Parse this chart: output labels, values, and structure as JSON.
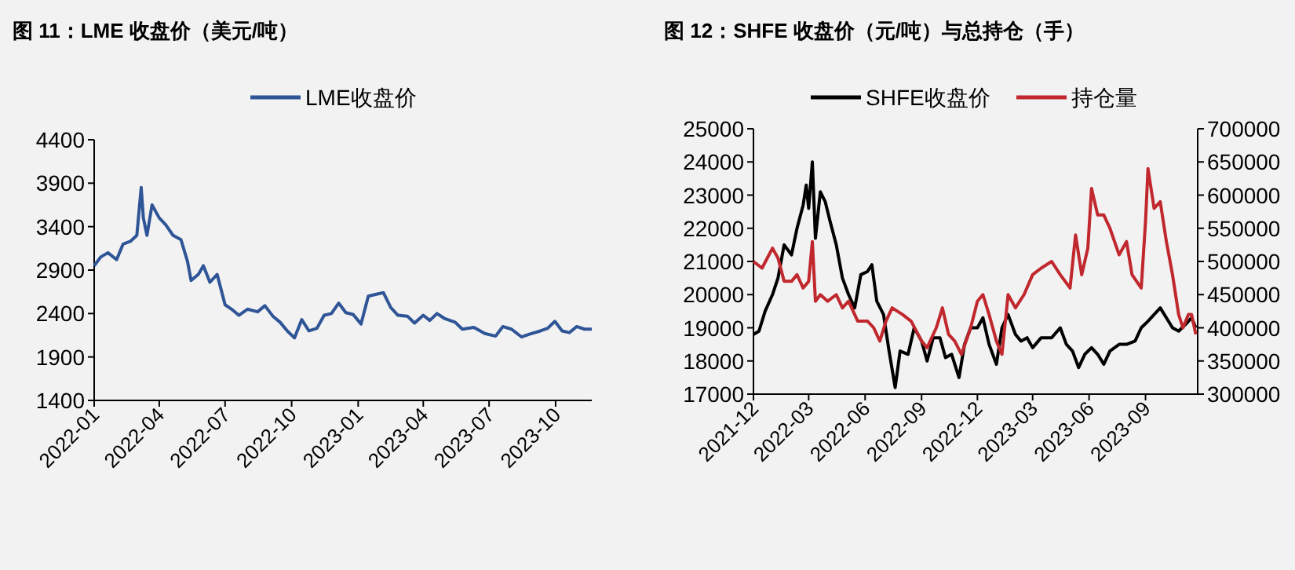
{
  "chart_data": [
    {
      "type": "line",
      "title": "图 11：LME 收盘价（美元/吨）",
      "legend": "top",
      "grid": false,
      "marker": "none",
      "line_style": "solid",
      "xlim": [
        "2022-01-01",
        "2023-11-20"
      ],
      "xticks": [
        "2022-01",
        "2022-04",
        "2022-07",
        "2022-10",
        "2023-01",
        "2023-04",
        "2023-07",
        "2023-10"
      ],
      "ylim": [
        1400,
        4400
      ],
      "yticks": [
        1400,
        1900,
        2400,
        2900,
        3400,
        3900,
        4400
      ],
      "series": [
        {
          "name": "LME收盘价",
          "color": "#2f5597",
          "x": [
            "2022-01-01",
            "2022-01-10",
            "2022-01-20",
            "2022-02-01",
            "2022-02-10",
            "2022-02-20",
            "2022-03-01",
            "2022-03-07",
            "2022-03-10",
            "2022-03-15",
            "2022-03-22",
            "2022-04-01",
            "2022-04-10",
            "2022-04-20",
            "2022-05-01",
            "2022-05-10",
            "2022-05-15",
            "2022-05-25",
            "2022-06-01",
            "2022-06-10",
            "2022-06-20",
            "2022-07-01",
            "2022-07-10",
            "2022-07-20",
            "2022-08-01",
            "2022-08-15",
            "2022-08-25",
            "2022-09-05",
            "2022-09-15",
            "2022-09-25",
            "2022-10-05",
            "2022-10-15",
            "2022-10-25",
            "2022-11-05",
            "2022-11-15",
            "2022-11-25",
            "2022-12-05",
            "2022-12-15",
            "2022-12-25",
            "2023-01-05",
            "2023-01-15",
            "2023-01-25",
            "2023-02-05",
            "2023-02-15",
            "2023-02-25",
            "2023-03-10",
            "2023-03-20",
            "2023-04-01",
            "2023-04-10",
            "2023-04-20",
            "2023-05-01",
            "2023-05-15",
            "2023-05-25",
            "2023-06-10",
            "2023-06-25",
            "2023-07-10",
            "2023-07-20",
            "2023-08-01",
            "2023-08-15",
            "2023-08-25",
            "2023-09-10",
            "2023-09-20",
            "2023-09-30",
            "2023-10-10",
            "2023-10-20",
            "2023-10-30",
            "2023-11-10",
            "2023-11-20"
          ],
          "values": [
            2950,
            3050,
            3100,
            3020,
            3200,
            3230,
            3300,
            3850,
            3500,
            3300,
            3650,
            3500,
            3420,
            3300,
            3250,
            3000,
            2780,
            2850,
            2950,
            2760,
            2850,
            2500,
            2450,
            2380,
            2450,
            2420,
            2490,
            2370,
            2300,
            2200,
            2120,
            2330,
            2200,
            2230,
            2380,
            2400,
            2520,
            2410,
            2390,
            2280,
            2600,
            2620,
            2640,
            2470,
            2380,
            2370,
            2290,
            2380,
            2320,
            2400,
            2340,
            2300,
            2220,
            2240,
            2170,
            2140,
            2250,
            2220,
            2130,
            2160,
            2200,
            2230,
            2310,
            2200,
            2180,
            2250,
            2220,
            2220
          ]
        }
      ]
    },
    {
      "type": "line",
      "title": "图 12：SHFE 收盘价（元/吨）与总持仓（手）",
      "legend": "top",
      "grid": false,
      "marker": "none",
      "line_style": "solid",
      "xlim": [
        "2021-12-01",
        "2023-11-25"
      ],
      "xticks": [
        "2021-12",
        "2022-03",
        "2022-06",
        "2022-09",
        "2022-12",
        "2023-03",
        "2023-06",
        "2023-09"
      ],
      "ylim": [
        17000,
        25000
      ],
      "yticks": [
        17000,
        18000,
        19000,
        20000,
        21000,
        22000,
        23000,
        24000,
        25000
      ],
      "y2lim": [
        300000,
        700000
      ],
      "y2ticks": [
        300000,
        350000,
        400000,
        450000,
        500000,
        550000,
        600000,
        650000,
        700000
      ],
      "series": [
        {
          "name": "SHFE收盘价",
          "color": "#000000",
          "x": [
            "2021-12-01",
            "2021-12-10",
            "2021-12-20",
            "2022-01-01",
            "2022-01-10",
            "2022-01-20",
            "2022-02-01",
            "2022-02-10",
            "2022-02-20",
            "2022-02-25",
            "2022-03-01",
            "2022-03-07",
            "2022-03-12",
            "2022-03-20",
            "2022-03-28",
            "2022-04-05",
            "2022-04-15",
            "2022-04-25",
            "2022-05-05",
            "2022-05-15",
            "2022-05-25",
            "2022-06-05",
            "2022-06-12",
            "2022-06-20",
            "2022-07-01",
            "2022-07-10",
            "2022-07-20",
            "2022-07-28",
            "2022-08-10",
            "2022-08-20",
            "2022-09-01",
            "2022-09-10",
            "2022-09-20",
            "2022-10-01",
            "2022-10-10",
            "2022-10-20",
            "2022-11-01",
            "2022-11-10",
            "2022-11-20",
            "2022-12-01",
            "2022-12-10",
            "2022-12-20",
            "2023-01-01",
            "2023-01-10",
            "2023-01-20",
            "2023-02-01",
            "2023-02-10",
            "2023-02-20",
            "2023-03-01",
            "2023-03-15",
            "2023-04-01",
            "2023-04-15",
            "2023-04-25",
            "2023-05-05",
            "2023-05-15",
            "2023-05-25",
            "2023-06-05",
            "2023-06-15",
            "2023-06-25",
            "2023-07-05",
            "2023-07-20",
            "2023-08-01",
            "2023-08-15",
            "2023-08-25",
            "2023-09-05",
            "2023-09-15",
            "2023-09-25",
            "2023-10-05",
            "2023-10-15",
            "2023-10-25",
            "2023-11-05",
            "2023-11-15",
            "2023-11-22"
          ],
          "values": [
            18800,
            18900,
            19500,
            20000,
            20500,
            21500,
            21200,
            22000,
            22700,
            23300,
            22600,
            24000,
            21700,
            23100,
            22800,
            22200,
            21500,
            20500,
            20000,
            19600,
            20600,
            20700,
            20900,
            19800,
            19400,
            18300,
            17200,
            18300,
            18200,
            19000,
            18600,
            18000,
            18700,
            18700,
            18100,
            18200,
            17500,
            18500,
            19000,
            19000,
            19300,
            18500,
            17900,
            19000,
            19400,
            18800,
            18600,
            18700,
            18400,
            18700,
            18700,
            19000,
            18500,
            18300,
            17800,
            18200,
            18400,
            18200,
            17900,
            18300,
            18500,
            18500,
            18600,
            19000,
            19200,
            19400,
            19600,
            19300,
            19000,
            18900,
            19100,
            19300,
            19000
          ]
        },
        {
          "name": "持仓量",
          "color": "#c0282e",
          "axis": "y2",
          "x": [
            "2021-12-01",
            "2021-12-15",
            "2022-01-01",
            "2022-01-10",
            "2022-01-20",
            "2022-02-01",
            "2022-02-10",
            "2022-02-20",
            "2022-03-01",
            "2022-03-07",
            "2022-03-12",
            "2022-03-20",
            "2022-04-01",
            "2022-04-15",
            "2022-04-25",
            "2022-05-05",
            "2022-05-20",
            "2022-06-05",
            "2022-06-15",
            "2022-06-25",
            "2022-07-05",
            "2022-07-15",
            "2022-08-01",
            "2022-08-15",
            "2022-09-01",
            "2022-09-10",
            "2022-09-25",
            "2022-10-05",
            "2022-10-15",
            "2022-10-25",
            "2022-11-05",
            "2022-11-20",
            "2022-12-01",
            "2022-12-10",
            "2022-12-20",
            "2023-01-01",
            "2023-01-10",
            "2023-01-20",
            "2023-02-01",
            "2023-02-15",
            "2023-03-01",
            "2023-03-15",
            "2023-04-01",
            "2023-04-15",
            "2023-05-01",
            "2023-05-10",
            "2023-05-20",
            "2023-05-30",
            "2023-06-05",
            "2023-06-15",
            "2023-06-25",
            "2023-07-05",
            "2023-07-20",
            "2023-08-01",
            "2023-08-10",
            "2023-08-25",
            "2023-09-01",
            "2023-09-05",
            "2023-09-15",
            "2023-09-25",
            "2023-10-05",
            "2023-10-15",
            "2023-10-25",
            "2023-11-01",
            "2023-11-10",
            "2023-11-15",
            "2023-11-22"
          ],
          "values": [
            500000,
            490000,
            520000,
            505000,
            470000,
            470000,
            480000,
            460000,
            470000,
            530000,
            440000,
            450000,
            440000,
            450000,
            430000,
            440000,
            410000,
            410000,
            400000,
            380000,
            410000,
            430000,
            420000,
            410000,
            380000,
            370000,
            400000,
            430000,
            390000,
            380000,
            360000,
            400000,
            440000,
            450000,
            420000,
            380000,
            360000,
            450000,
            430000,
            450000,
            480000,
            490000,
            500000,
            480000,
            460000,
            540000,
            480000,
            520000,
            610000,
            570000,
            570000,
            550000,
            510000,
            530000,
            480000,
            460000,
            560000,
            640000,
            580000,
            590000,
            530000,
            480000,
            420000,
            400000,
            420000,
            420000,
            390000
          ]
        }
      ]
    }
  ]
}
